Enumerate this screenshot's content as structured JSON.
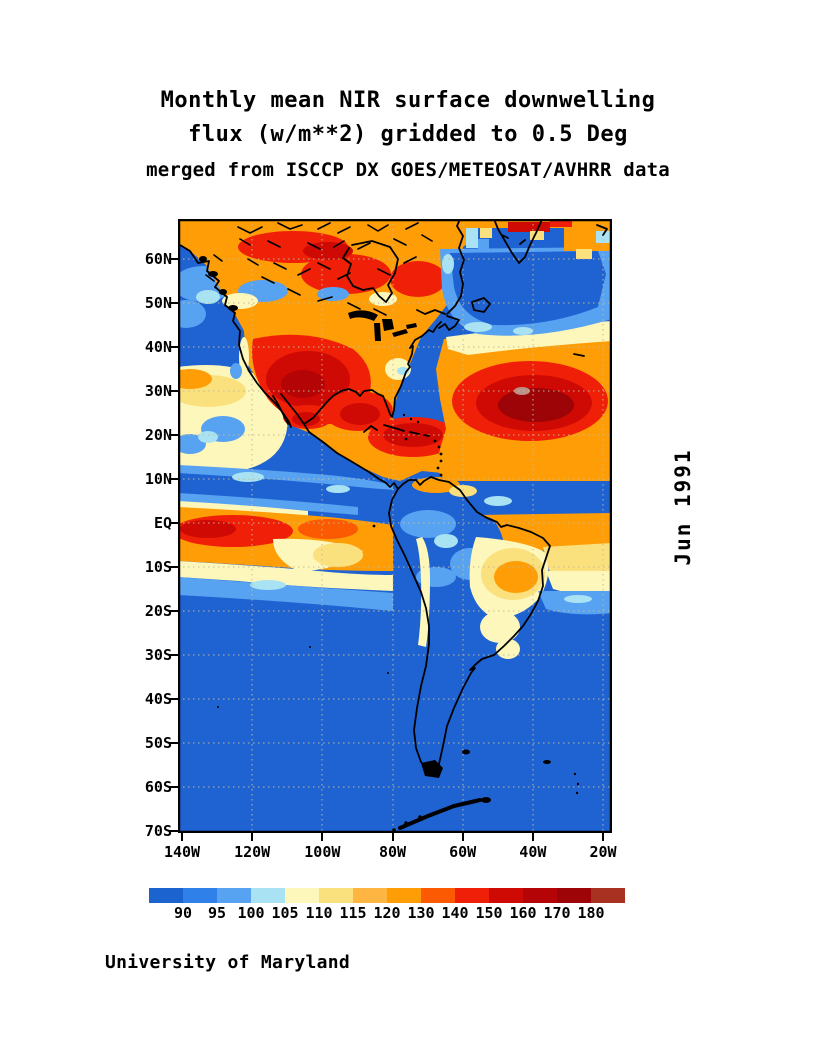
{
  "page": {
    "background": "#ffffff"
  },
  "title": {
    "line1": "Monthly mean NIR surface downwelling",
    "line2": "flux (w/m**2) gridded to 0.5 Deg",
    "line3": "merged from ISCCP DX GOES/METEOSAT/AVHRR data"
  },
  "side_label": "Jun 1991",
  "credit": "University of Maryland",
  "map": {
    "lat_ticks": [
      "60N",
      "50N",
      "40N",
      "30N",
      "20N",
      "10N",
      "EQ",
      "10S",
      "20S",
      "30S",
      "40S",
      "50S",
      "60S",
      "70S"
    ],
    "lon_ticks": [
      "140W",
      "120W",
      "100W",
      "80W",
      "60W",
      "40W",
      "20W"
    ],
    "border_color": "#000000",
    "ocean_color": "#1f63d2",
    "grid_color": "#c2bb97"
  },
  "colorbar": {
    "labels": [
      "90",
      "95",
      "100",
      "105",
      "110",
      "115",
      "120",
      "130",
      "140",
      "150",
      "160",
      "170",
      "180"
    ],
    "colors": [
      "#1b64d0",
      "#2f80e8",
      "#58a2f2",
      "#a9e2f2",
      "#fdf7bb",
      "#fbe07e",
      "#ffb542",
      "#ff9d06",
      "#fb5a02",
      "#f02008",
      "#cf0a04",
      "#b40406",
      "#9c0407",
      "#a83122"
    ]
  },
  "chart_data": {
    "type": "heatmap",
    "variable": "Monthly mean NIR surface downwelling flux",
    "units": "w/m**2",
    "grid": "0.5 Deg",
    "sources": "ISCCP DX GOES/METEOSAT/AVHRR",
    "period": "Jun 1991",
    "x_axis": {
      "ticks": [
        "140W",
        "120W",
        "100W",
        "80W",
        "60W",
        "40W",
        "20W"
      ],
      "range_deg_west": [
        141,
        17.5
      ]
    },
    "y_axis": {
      "ticks": [
        "60N",
        "50N",
        "40N",
        "30N",
        "20N",
        "10N",
        "EQ",
        "10S",
        "20S",
        "30S",
        "40S",
        "50S",
        "60S",
        "70S"
      ],
      "range_deg": [
        -70,
        69
      ]
    },
    "color_levels": [
      90,
      95,
      100,
      105,
      110,
      115,
      120,
      130,
      140,
      150,
      160,
      170,
      180
    ],
    "palette": [
      "#1b64d0",
      "#2f80e8",
      "#58a2f2",
      "#a9e2f2",
      "#fdf7bb",
      "#fbe07e",
      "#ffb542",
      "#ff9d06",
      "#fb5a02",
      "#f02008",
      "#cf0a04",
      "#b40406",
      "#9c0407",
      "#a83122"
    ],
    "legend_position": "bottom",
    "grid_lines": "dashed, 10 deg latitude / 20 deg longitude",
    "features": [
      {
        "region": "North America interior 25N-65N",
        "value_range": "120-170"
      },
      {
        "region": "US Southwest / Rockies / Mexico core",
        "value_range": "150-180"
      },
      {
        "region": "Subtropical North Atlantic 20N-37N maximum",
        "value_range": "160->180"
      },
      {
        "region": "Gulf of Mexico / Caribbean",
        "value_range": "140-170"
      },
      {
        "region": "North Pacific 40N-60N",
        "value_range": "<90-100"
      },
      {
        "region": "North Atlantic 45N-66N",
        "value_range": "<90-105"
      },
      {
        "region": "ITCZ cloud band 3N-10N across Pacific and Atlantic",
        "value_range": "<90-105"
      },
      {
        "region": "Equatorial Pacific EQ-12S",
        "value_range": "120-150"
      },
      {
        "region": "Amazon basin",
        "value_range": "<90-105"
      },
      {
        "region": "Interior Brazil 5S-20S",
        "value_range": "105-130"
      },
      {
        "region": "South Atlantic 6S-15S",
        "value_range": "105-120"
      },
      {
        "region": "Southern oceans south of 20S",
        "value_range": "<90"
      }
    ]
  }
}
